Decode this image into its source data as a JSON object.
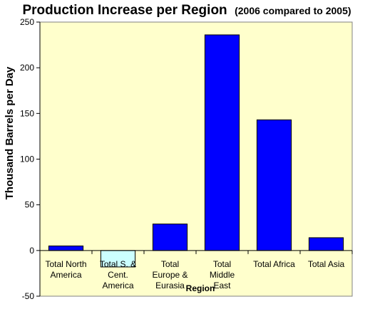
{
  "chart_data": {
    "type": "bar",
    "title": "Production Increase per Region",
    "subtitle": "(2006 compared to 2005)",
    "xlabel": "Region",
    "ylabel": "Thousand Barrels per Day",
    "ylim": [
      -50,
      250
    ],
    "yticks": [
      -50,
      0,
      50,
      100,
      150,
      200,
      250
    ],
    "categories": [
      [
        "Total North",
        "America"
      ],
      [
        "Total S. &",
        "Cent.",
        "America"
      ],
      [
        "Total",
        "Europe &",
        "Eurasia"
      ],
      [
        "Total",
        "Middle",
        "East"
      ],
      [
        "Total Africa"
      ],
      [
        "Total Asia"
      ]
    ],
    "values": [
      5,
      -18,
      29,
      236,
      143,
      14
    ],
    "bar_colors": [
      "#0000ff",
      "#ccffff",
      "#0000ff",
      "#0000ff",
      "#0000ff",
      "#0000ff"
    ],
    "plot_background": "#ffffcc",
    "grid": false,
    "legend": "none"
  }
}
